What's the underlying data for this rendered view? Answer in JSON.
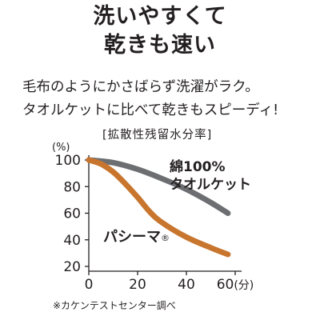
{
  "headline": {
    "line1": "洗いやすくて",
    "line2": "乾きも速い"
  },
  "description": {
    "line1": "毛布のようにかさばらず洗濯がラク。",
    "line2": "タオルケットに比べて乾きもスピーディ!"
  },
  "footnote": "※カケンテストセンター調べ",
  "chart_data": {
    "type": "line",
    "title": "[拡散性残留水分率]",
    "ylabel": "(%)",
    "xlabel": "",
    "x_unit_suffix": "(分)",
    "ylim": [
      20,
      100
    ],
    "xlim": [
      0,
      60
    ],
    "yticks": [
      "100",
      "80",
      "60",
      "40",
      "20"
    ],
    "xticks": [
      "0",
      "20",
      "40",
      "60"
    ],
    "grid": false,
    "series": [
      {
        "name": "綿100% タオルケット",
        "name_lines": [
          "綿100%",
          "タオルケット"
        ],
        "color": "#6d6e71",
        "x": [
          0,
          10,
          20,
          30,
          40,
          50,
          57
        ],
        "values": [
          100,
          98,
          93,
          86,
          78,
          68,
          60
        ]
      },
      {
        "name": "パシーマ®",
        "label_text": "パシーマ",
        "label_mark": "®",
        "color": "#c8752e",
        "x": [
          0,
          5,
          10,
          15,
          20,
          25,
          30,
          40,
          50,
          57
        ],
        "values": [
          100,
          97,
          91,
          82,
          72,
          61,
          53,
          42,
          34,
          29
        ]
      }
    ]
  }
}
